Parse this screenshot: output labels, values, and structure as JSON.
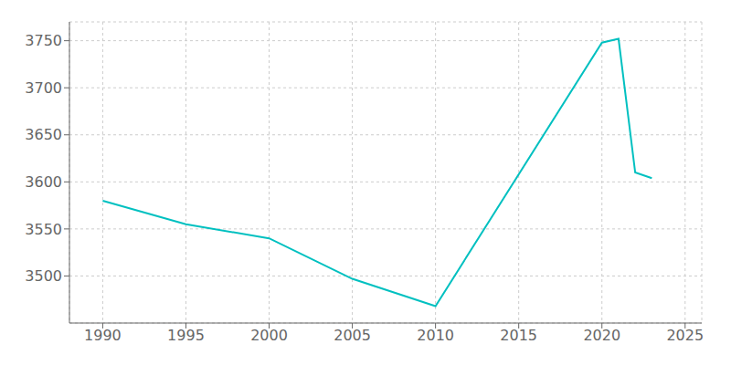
{
  "chart_data": {
    "type": "line",
    "x": [
      1990,
      1995,
      2000,
      2005,
      2010,
      2020,
      2021,
      2022,
      2023
    ],
    "values": [
      3580,
      3555,
      3540,
      3497,
      3468,
      3748,
      3752,
      3610,
      3604
    ],
    "color": "#00C0C0",
    "xlim": [
      1988,
      2026
    ],
    "ylim": [
      3450,
      3770
    ],
    "xticks": [
      1990,
      1995,
      2000,
      2005,
      2010,
      2015,
      2020,
      2025
    ],
    "yticks": [
      3500,
      3550,
      3600,
      3650,
      3700,
      3750
    ],
    "grid": true
  }
}
